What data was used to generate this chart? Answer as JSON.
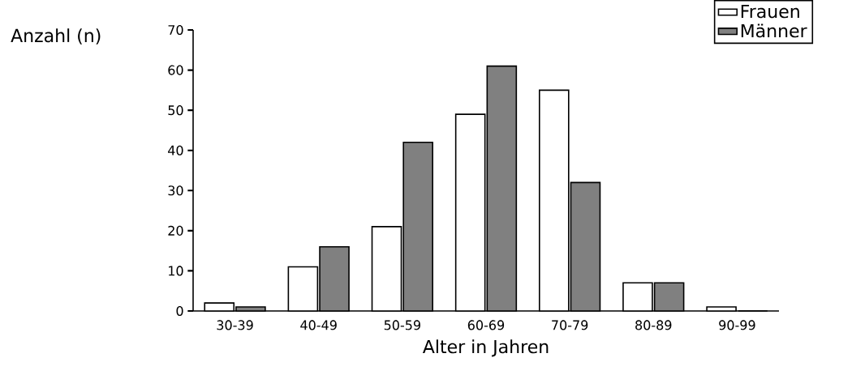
{
  "chart_data": {
    "type": "bar",
    "xlabel": "Alter in Jahren",
    "ylabel": "Anzahl (n)",
    "categories": [
      "30-39",
      "40-49",
      "50-59",
      "60-69",
      "70-79",
      "80-89",
      "90-99"
    ],
    "series": [
      {
        "name": "Frauen",
        "color": "#ffffff",
        "values": [
          2,
          11,
          21,
          49,
          55,
          7,
          1
        ]
      },
      {
        "name": "Männer",
        "color": "#808080",
        "values": [
          1,
          16,
          42,
          61,
          32,
          7,
          0
        ]
      }
    ],
    "ylim": [
      0,
      70
    ],
    "yticks": [
      0,
      10,
      20,
      30,
      40,
      50,
      60,
      70
    ],
    "grid": false,
    "legend": "top right"
  }
}
